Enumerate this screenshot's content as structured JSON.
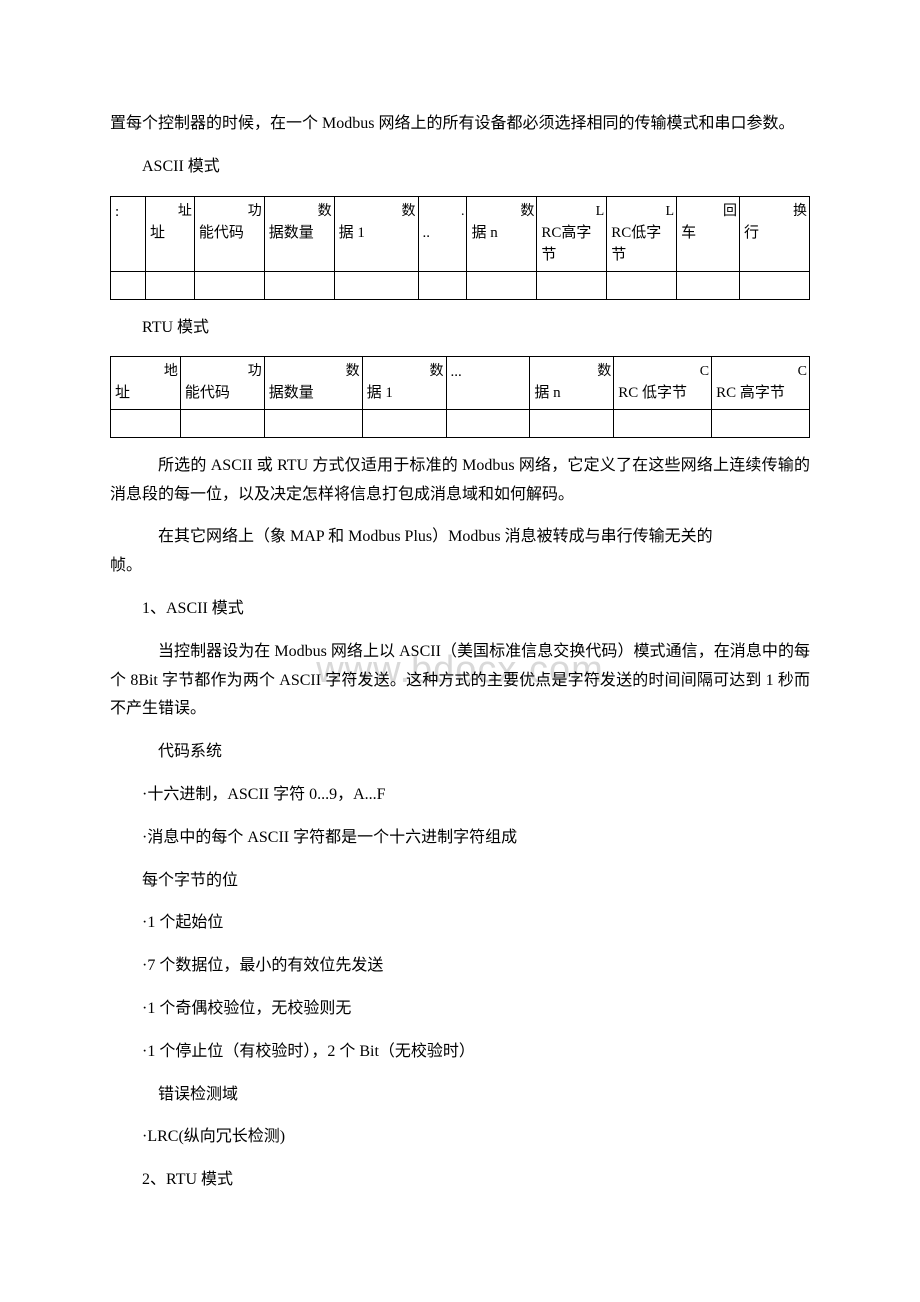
{
  "watermark": "www.bdocx.com",
  "intro_para": "置每个控制器的时候，在一个 Modbus 网络上的所有设备都必须选择相同的传输模式和串口参数。",
  "ascii_heading": "ASCII 模式",
  "rtu_heading": "RTU 模式",
  "table_ascii": {
    "cols": [
      {
        "top": "",
        "bottom": ":"
      },
      {
        "top": "址",
        "bottom": "址"
      },
      {
        "top": "功",
        "bottom": "能代码"
      },
      {
        "top": "数",
        "bottom": "据数量"
      },
      {
        "top": "数",
        "bottom": "据 1"
      },
      {
        "top": ".",
        "bottom": ".."
      },
      {
        "top": "数",
        "bottom": "据 n"
      },
      {
        "top": "L",
        "bottom": "RC高字节"
      },
      {
        "top": "L",
        "bottom": "RC低字节"
      },
      {
        "top": "回",
        "bottom": "车"
      },
      {
        "top": "换",
        "bottom": "行"
      }
    ],
    "col_widths": [
      "5%",
      "7%",
      "10%",
      "10%",
      "12%",
      "7%",
      "10%",
      "10%",
      "10%",
      "9%",
      "10%"
    ]
  },
  "table_rtu": {
    "cols": [
      {
        "top": "地",
        "bottom": "址"
      },
      {
        "top": "功",
        "bottom": "能代码"
      },
      {
        "top": "数",
        "bottom": "据数量"
      },
      {
        "top": "数",
        "bottom": "据 1"
      },
      {
        "top": "",
        "bottom": "..."
      },
      {
        "top": "数",
        "bottom": "据 n"
      },
      {
        "top": "C",
        "bottom": "RC 低字节"
      },
      {
        "top": "C",
        "bottom": "RC 高字节"
      }
    ],
    "col_widths": [
      "10%",
      "12%",
      "14%",
      "12%",
      "12%",
      "12%",
      "14%",
      "14%"
    ]
  },
  "para_after_rtu1": "所选的 ASCII 或 RTU 方式仅适用于标准的 Modbus 网络，它定义了在这些网络上连续传输的消息段的每一位，以及决定怎样将信息打包成消息域和如何解码。",
  "para_after_rtu2_part1": "在其它网络上（象 MAP 和 Modbus Plus）Modbus 消息被转成与串行传输无关的",
  "para_after_rtu2_part2": "帧。",
  "section1_title": "1、ASCII 模式",
  "section1_para": "当控制器设为在 Modbus 网络上以 ASCII（美国标准信息交换代码）模式通信，在消息中的每个 8Bit 字节都作为两个 ASCII 字符发送。这种方式的主要优点是字符发送的时间间隔可达到 1 秒而不产生错误。",
  "codesys_title": "代码系统",
  "codesys_item1": "·十六进制，ASCII 字符 0...9，A...F",
  "codesys_item2": "·消息中的每个 ASCII 字符都是一个十六进制字符组成",
  "bytebit_title": "每个字节的位",
  "bytebit_item1": "·1 个起始位",
  "bytebit_item2": "·7 个数据位，最小的有效位先发送",
  "bytebit_item3": "·1 个奇偶校验位，无校验则无",
  "bytebit_item4": "·1 个停止位（有校验时），2 个 Bit（无校验时）",
  "errdet_title": "错误检测域",
  "errdet_item1": "·LRC(纵向冗长检测)",
  "section2_title": "2、RTU 模式"
}
